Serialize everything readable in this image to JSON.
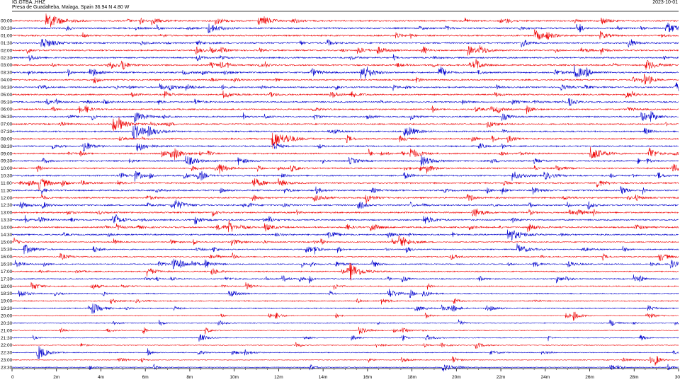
{
  "header": {
    "station": "IG.GTBA..HHZ",
    "location": "Presa de Guadalteba, Malaga, Spain  36.94 N 4.80 W",
    "date": "2023-10-01"
  },
  "chart_data": {
    "type": "line",
    "title": "IG.GTBA..HHZ",
    "xlabel": "",
    "ylabel": "",
    "xlim": [
      0,
      30
    ],
    "x_ticks": [
      0,
      2,
      4,
      6,
      8,
      10,
      12,
      14,
      16,
      18,
      20,
      22,
      24,
      26,
      28,
      30
    ],
    "x_tick_labels": [
      "0",
      "2m",
      "4m",
      "6m",
      "8m",
      "10m",
      "12m",
      "14m",
      "16m",
      "18m",
      "20m",
      "22m",
      "24m",
      "26m",
      "28m",
      "30"
    ],
    "row_labels": [
      "00:00",
      "00:30",
      "01:00",
      "01:30",
      "02:00",
      "02:30",
      "03:00",
      "03:30",
      "04:00",
      "04:30",
      "05:00",
      "05:30",
      "06:00",
      "06:30",
      "07:00",
      "07:30",
      "08:00",
      "08:30",
      "09:00",
      "09:30",
      "10:00",
      "10:30",
      "11:00",
      "11:30",
      "12:00",
      "12:30",
      "13:00",
      "13:30",
      "14:00",
      "14:30",
      "15:00",
      "15:30",
      "16:00",
      "16:30",
      "17:00",
      "17:30",
      "18:00",
      "18:30",
      "19:00",
      "19:30",
      "20:00",
      "20:30",
      "21:00",
      "21:30",
      "22:00",
      "22:30",
      "23:00",
      "23:30"
    ],
    "colors": [
      "#ee0000",
      "#0000cc"
    ],
    "grid": false,
    "events": [
      {
        "row": 0,
        "minute": 1.5,
        "amp": 1.0
      },
      {
        "row": 1,
        "minute": 8.8,
        "amp": 0.6
      },
      {
        "row": 1,
        "minute": 29.4,
        "amp": 0.7
      },
      {
        "row": 2,
        "minute": 23.5,
        "amp": 0.6
      },
      {
        "row": 3,
        "minute": 1.3,
        "amp": 0.7
      },
      {
        "row": 4,
        "minute": 20.5,
        "amp": 0.5
      },
      {
        "row": 6,
        "minute": 4.3,
        "amp": 0.5
      },
      {
        "row": 6,
        "minute": 28.5,
        "amp": 0.6
      },
      {
        "row": 7,
        "minute": 15.7,
        "amp": 0.7
      },
      {
        "row": 7,
        "minute": 25.3,
        "amp": 0.7
      },
      {
        "row": 9,
        "minute": 29.8,
        "amp": 0.6
      },
      {
        "row": 10,
        "minute": 9.5,
        "amp": 0.4
      },
      {
        "row": 13,
        "minute": 5.5,
        "amp": 0.6
      },
      {
        "row": 13,
        "minute": 28.3,
        "amp": 0.5
      },
      {
        "row": 14,
        "minute": 4.5,
        "amp": 0.8
      },
      {
        "row": 15,
        "minute": 5.4,
        "amp": 0.9
      },
      {
        "row": 15,
        "minute": 17.6,
        "amp": 0.6
      },
      {
        "row": 16,
        "minute": 11.7,
        "amp": 1.0
      },
      {
        "row": 17,
        "minute": 5.6,
        "amp": 0.6
      },
      {
        "row": 18,
        "minute": 17.9,
        "amp": 0.6
      },
      {
        "row": 18,
        "minute": 26.0,
        "amp": 0.8
      },
      {
        "row": 19,
        "minute": 7.8,
        "amp": 0.6
      },
      {
        "row": 19,
        "minute": 18.4,
        "amp": 0.6
      },
      {
        "row": 20,
        "minute": 29.7,
        "amp": 0.5
      },
      {
        "row": 21,
        "minute": 22.5,
        "amp": 0.5
      },
      {
        "row": 22,
        "minute": 1.2,
        "amp": 0.6
      },
      {
        "row": 22,
        "minute": 10.8,
        "amp": 0.6
      },
      {
        "row": 25,
        "minute": 7.3,
        "amp": 0.6
      },
      {
        "row": 27,
        "minute": 18.5,
        "amp": 0.5
      },
      {
        "row": 29,
        "minute": 22.3,
        "amp": 0.8
      },
      {
        "row": 30,
        "minute": 17.4,
        "amp": 0.7
      },
      {
        "row": 31,
        "minute": 0.5,
        "amp": 0.6
      },
      {
        "row": 31,
        "minute": 22.7,
        "amp": 0.6
      },
      {
        "row": 32,
        "minute": 29.1,
        "amp": 0.5
      },
      {
        "row": 33,
        "minute": 7.2,
        "amp": 0.6
      },
      {
        "row": 33,
        "minute": 29.6,
        "amp": 0.5
      },
      {
        "row": 34,
        "minute": 15.2,
        "amp": 0.8
      },
      {
        "row": 37,
        "minute": 16.9,
        "amp": 0.4
      },
      {
        "row": 39,
        "minute": 3.6,
        "amp": 0.5
      },
      {
        "row": 39,
        "minute": 21.3,
        "amp": 0.4
      },
      {
        "row": 42,
        "minute": 15.6,
        "amp": 0.4
      },
      {
        "row": 45,
        "minute": 1.1,
        "amp": 0.5
      },
      {
        "row": 47,
        "minute": 26.9,
        "amp": 0.3
      }
    ]
  }
}
